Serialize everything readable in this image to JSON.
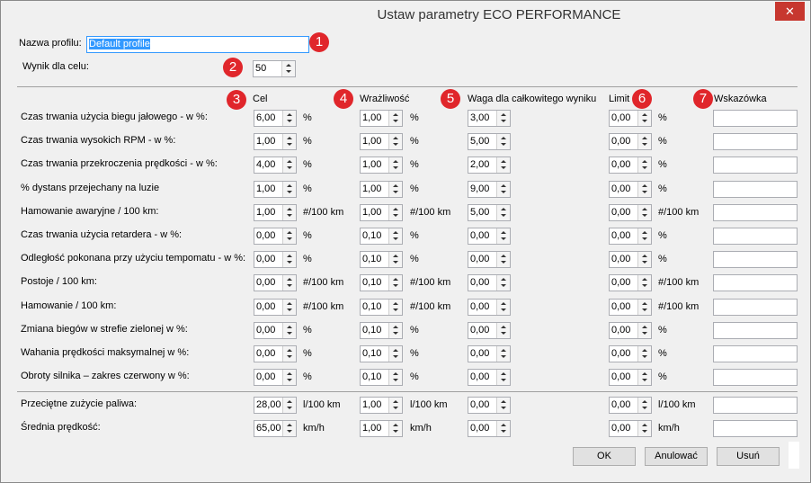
{
  "window": {
    "title": "Ustaw parametry ECO PERFORMANCE"
  },
  "profile": {
    "label": "Nazwa profilu:",
    "value": "Default profile"
  },
  "target": {
    "label": "Wynik dla celu:",
    "value": "50"
  },
  "badges": [
    "1",
    "2",
    "3",
    "4",
    "5",
    "6",
    "7"
  ],
  "columns": [
    "Cel",
    "Wrażliwość",
    "Waga dla całkowitego wyniku",
    "Limit",
    "Wskazówka"
  ],
  "rows": [
    {
      "label": "Czas trwania użycia biegu jałowego - w %:",
      "target": "6,00",
      "target_unit": "%",
      "sensitivity": "1,00",
      "sensitivity_unit": "%",
      "weight": "3,00",
      "limit": "0,00",
      "limit_unit": "%"
    },
    {
      "label": "Czas trwania wysokich RPM - w %:",
      "target": "1,00",
      "target_unit": "%",
      "sensitivity": "1,00",
      "sensitivity_unit": "%",
      "weight": "5,00",
      "limit": "0,00",
      "limit_unit": "%"
    },
    {
      "label": "Czas trwania przekroczenia prędkości - w %:",
      "target": "4,00",
      "target_unit": "%",
      "sensitivity": "1,00",
      "sensitivity_unit": "%",
      "weight": "2,00",
      "limit": "0,00",
      "limit_unit": "%"
    },
    {
      "label": "% dystans przejechany na luzie",
      "target": "1,00",
      "target_unit": "%",
      "sensitivity": "1,00",
      "sensitivity_unit": "%",
      "weight": "9,00",
      "limit": "0,00",
      "limit_unit": "%"
    },
    {
      "label": "Hamowanie awaryjne / 100 km:",
      "target": "1,00",
      "target_unit": "#/100 km",
      "sensitivity": "1,00",
      "sensitivity_unit": "#/100 km",
      "weight": "5,00",
      "limit": "0,00",
      "limit_unit": "#/100 km"
    },
    {
      "label": "Czas trwania użycia retardera - w %:",
      "target": "0,00",
      "target_unit": "%",
      "sensitivity": "0,10",
      "sensitivity_unit": "%",
      "weight": "0,00",
      "limit": "0,00",
      "limit_unit": "%"
    },
    {
      "label": "Odległość pokonana przy użyciu tempomatu - w %:",
      "target": "0,00",
      "target_unit": "%",
      "sensitivity": "0,10",
      "sensitivity_unit": "%",
      "weight": "0,00",
      "limit": "0,00",
      "limit_unit": "%"
    },
    {
      "label": "Postoje / 100 km:",
      "target": "0,00",
      "target_unit": "#/100 km",
      "sensitivity": "0,10",
      "sensitivity_unit": "#/100 km",
      "weight": "0,00",
      "limit": "0,00",
      "limit_unit": "#/100 km"
    },
    {
      "label": "Hamowanie / 100 km:",
      "target": "0,00",
      "target_unit": "#/100 km",
      "sensitivity": "0,10",
      "sensitivity_unit": "#/100 km",
      "weight": "0,00",
      "limit": "0,00",
      "limit_unit": "#/100 km"
    },
    {
      "label": "Zmiana biegów w strefie zielonej w %:",
      "target": "0,00",
      "target_unit": "%",
      "sensitivity": "0,10",
      "sensitivity_unit": "%",
      "weight": "0,00",
      "limit": "0,00",
      "limit_unit": "%"
    },
    {
      "label": "Wahania prędkości maksymalnej w %:",
      "target": "0,00",
      "target_unit": "%",
      "sensitivity": "0,10",
      "sensitivity_unit": "%",
      "weight": "0,00",
      "limit": "0,00",
      "limit_unit": "%"
    },
    {
      "label": "Obroty silnika – zakres czerwony w %:",
      "target": "0,00",
      "target_unit": "%",
      "sensitivity": "0,10",
      "sensitivity_unit": "%",
      "weight": "0,00",
      "limit": "0,00",
      "limit_unit": "%"
    }
  ],
  "summary_rows": [
    {
      "label": "Przeciętne zużycie paliwa:",
      "target": "28,00",
      "target_unit": "l/100 km",
      "sensitivity": "1,00",
      "sensitivity_unit": "l/100 km",
      "weight": "0,00",
      "limit": "0,00",
      "limit_unit": "l/100 km"
    },
    {
      "label": "Średnia prędkość:",
      "target": "65,00",
      "target_unit": "km/h",
      "sensitivity": "1,00",
      "sensitivity_unit": "km/h",
      "weight": "0,00",
      "limit": "0,00",
      "limit_unit": "km/h"
    }
  ],
  "buttons": [
    "OK",
    "Anulować",
    "Usuń"
  ]
}
